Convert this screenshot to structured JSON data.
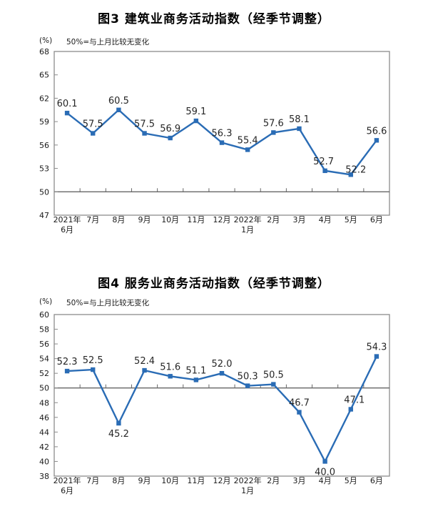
{
  "chart_data": [
    {
      "type": "line",
      "title": "图3 建筑业商务活动指数（经季节调整）",
      "unit_label": "(%)",
      "note": "50%=与上月比较无变化",
      "categories": [
        "2021年\n6月",
        "7月",
        "8月",
        "9月",
        "10月",
        "11月",
        "12月",
        "2022年\n1月",
        "2月",
        "3月",
        "4月",
        "5月",
        "6月"
      ],
      "values": [
        60.1,
        57.5,
        60.5,
        57.5,
        56.9,
        59.1,
        56.3,
        55.4,
        57.6,
        58.1,
        52.7,
        52.2,
        56.6
      ],
      "ylim": [
        47,
        68
      ],
      "ytick_step": 3,
      "reference_line": 50,
      "grid": false,
      "legend": "none",
      "line_color": "#2a6cb5",
      "marker": "square",
      "text_color": "#1a1a1a",
      "axis_color": "#8c8c8c",
      "reference_line_color": "#666666",
      "label_positions": [
        "above",
        "above",
        "above",
        "above",
        "above",
        "above",
        "above",
        "above",
        "above",
        "above",
        "above",
        "above",
        "above"
      ],
      "label_dx": [
        0,
        0,
        0,
        0,
        0,
        0,
        0,
        0,
        0,
        0,
        -2,
        7,
        0
      ],
      "label_dy": [
        0,
        0,
        0,
        0,
        0,
        0,
        0,
        0,
        0,
        0,
        0,
        6,
        0
      ]
    },
    {
      "type": "line",
      "title": "图4 服务业商务活动指数（经季节调整）",
      "unit_label": "(%)",
      "note": "50%=与上月比较无变化",
      "categories": [
        "2021年\n6月",
        "7月",
        "8月",
        "9月",
        "10月",
        "11月",
        "12月",
        "2022年\n1月",
        "2月",
        "3月",
        "4月",
        "5月",
        "6月"
      ],
      "values": [
        52.3,
        52.5,
        45.2,
        52.4,
        51.6,
        51.1,
        52.0,
        50.3,
        50.5,
        46.7,
        40.0,
        47.1,
        54.3
      ],
      "ylim": [
        38,
        60
      ],
      "ytick_step": 2,
      "reference_line": 50,
      "grid": false,
      "legend": "none",
      "line_color": "#2a6cb5",
      "marker": "square",
      "text_color": "#1a1a1a",
      "axis_color": "#8c8c8c",
      "reference_line_color": "#666666",
      "label_positions": [
        "above",
        "above",
        "below",
        "above",
        "above",
        "above",
        "above",
        "above",
        "above",
        "above",
        "below",
        "above",
        "above"
      ],
      "label_dx": [
        0,
        0,
        0,
        0,
        0,
        0,
        0,
        0,
        0,
        0,
        0,
        5,
        0
      ],
      "label_dy": [
        0,
        0,
        0,
        0,
        0,
        0,
        0,
        0,
        0,
        0,
        0,
        0,
        0
      ]
    }
  ]
}
